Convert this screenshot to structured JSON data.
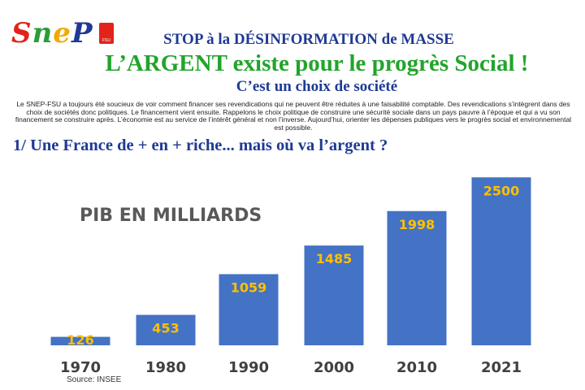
{
  "header": {
    "logo_text": "SNEP FSU",
    "logo_letters": [
      {
        "ch": "S",
        "color": "#e2231a"
      },
      {
        "ch": "n",
        "color": "#2a9d3b"
      },
      {
        "ch": "e",
        "color": "#f2a900"
      },
      {
        "ch": "P",
        "color": "#1f3a93"
      }
    ],
    "title_line1": "STOP à la DÉSINFORMATION de MASSE",
    "title_line2": "L’ARGENT existe pour le progrès Social !",
    "title_line3": "C’est un choix de société",
    "intro": "Le SNEP-FSU a toujours été soucieux de voir comment financer ses revendications qui ne peuvent être réduites à une faisabilité comptable. Des revendications s’intègrent dans des choix de sociétés donc politiques. Le financement vient ensuite. Rappelons le choix politique de construire une sécurité sociale dans un pays pauvre à l’époque et qui a vu son financement se construire après. L’économie est au service de l’intérêt général et non l’inverse. Aujourd’hui, orienter les dépenses publiques vers le progrès social et environnemental est possible."
  },
  "section_title": "1/ Une France de + en + riche... mais où va l’argent ?",
  "source": "Source: INSEE",
  "colors": {
    "bar": "#4472c4",
    "value_label": "#ffc000",
    "category_label": "#404040",
    "chart_title": "#595959"
  },
  "chart_data": {
    "type": "bar",
    "title": "PIB EN MILLIARDS",
    "categories": [
      "1970",
      "1980",
      "1990",
      "2000",
      "2010",
      "2021"
    ],
    "values": [
      126,
      453,
      1059,
      1485,
      1998,
      2500
    ],
    "xlabel": "",
    "ylabel": "",
    "ylim": [
      0,
      2600
    ],
    "grid": false,
    "legend": "none",
    "data_labels": true
  }
}
